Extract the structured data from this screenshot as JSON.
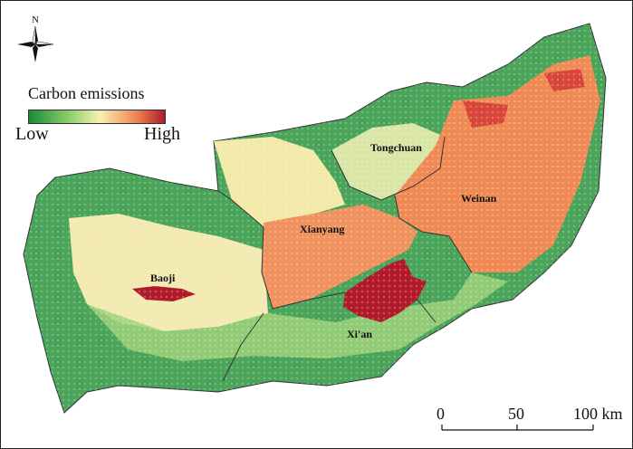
{
  "compass": {
    "north_label": "N",
    "icon": "compass-rose-icon"
  },
  "legend": {
    "title": "Carbon emissions",
    "low_label": "Low",
    "high_label": "High"
  },
  "cities": {
    "tongchuan": "Tongchuan",
    "weinan": "Weinan",
    "xianyang": "Xianyang",
    "baoji": "Baoji",
    "xian": "Xi'an"
  },
  "scale_bar": {
    "label_0": "0",
    "label_50": "50",
    "label_100": "100 km"
  },
  "colors": {
    "low": "#1a8a3a",
    "mid_low": "#8fcf6a",
    "mid": "#f7f0b5",
    "mid_high": "#f08a55",
    "high": "#b01a2a"
  }
}
